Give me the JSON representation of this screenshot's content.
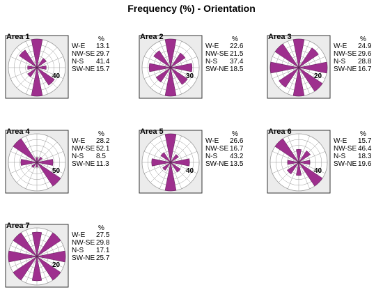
{
  "page_title": "Frequency (%) - Orientation",
  "colors": {
    "petal": "#9E2F8E",
    "petal_stroke": "#5a1a52",
    "panel_bg": "#ececec",
    "grid": "#9a9a9a",
    "frame": "#333333"
  },
  "chart_data": [
    {
      "type": "rose",
      "title": "Area 1",
      "unit": "%",
      "scale_label": "40",
      "scale_max": 40,
      "rows": [
        {
          "dir": "W-E",
          "value": "13.1"
        },
        {
          "dir": "NW-SE",
          "value": "29.7"
        },
        {
          "dir": "N-S",
          "value": "41.4"
        },
        {
          "dir": "SW-NE",
          "value": "15.7"
        }
      ]
    },
    {
      "type": "rose",
      "title": "Area 2",
      "unit": "%",
      "scale_label": "30",
      "scale_max": 30,
      "rows": [
        {
          "dir": "W-E",
          "value": "22.6"
        },
        {
          "dir": "NW-SE",
          "value": "21.5"
        },
        {
          "dir": "N-S",
          "value": "37.4"
        },
        {
          "dir": "SW-NE",
          "value": "18.5"
        }
      ]
    },
    {
      "type": "rose",
      "title": "Area 3",
      "unit": "%",
      "scale_label": "20",
      "scale_max": 20,
      "rows": [
        {
          "dir": "W-E",
          "value": "24.9"
        },
        {
          "dir": "NW-SE",
          "value": "29.6"
        },
        {
          "dir": "N-S",
          "value": "28.8"
        },
        {
          "dir": "SW-NE",
          "value": "16.7"
        }
      ]
    },
    {
      "type": "rose",
      "title": "Area 4",
      "unit": "%",
      "scale_label": "50",
      "scale_max": 50,
      "rows": [
        {
          "dir": "W-E",
          "value": "28.2"
        },
        {
          "dir": "NW-SE",
          "value": "52.1"
        },
        {
          "dir": "N-S",
          "value": "8.5"
        },
        {
          "dir": "SW-NE",
          "value": "11.3"
        }
      ]
    },
    {
      "type": "rose",
      "title": "Area 5",
      "unit": "%",
      "scale_label": "40",
      "scale_max": 40,
      "rows": [
        {
          "dir": "W-E",
          "value": "26.6"
        },
        {
          "dir": "NW-SE",
          "value": "16.7"
        },
        {
          "dir": "N-S",
          "value": "43.2"
        },
        {
          "dir": "SW-NE",
          "value": "13.5"
        }
      ]
    },
    {
      "type": "rose",
      "title": "Area 6",
      "unit": "%",
      "scale_label": "40",
      "scale_max": 40,
      "rows": [
        {
          "dir": "W-E",
          "value": "15.7"
        },
        {
          "dir": "NW-SE",
          "value": "46.4"
        },
        {
          "dir": "N-S",
          "value": "18.3"
        },
        {
          "dir": "SW-NE",
          "value": "19.6"
        }
      ]
    },
    {
      "type": "rose",
      "title": "Area 7",
      "unit": "%",
      "scale_label": "20",
      "scale_max": 20,
      "rows": [
        {
          "dir": "W-E",
          "value": "27.5"
        },
        {
          "dir": "NW-SE",
          "value": "29.8"
        },
        {
          "dir": "N-S",
          "value": "17.1"
        },
        {
          "dir": "SW-NE",
          "value": "25.7"
        }
      ]
    }
  ]
}
